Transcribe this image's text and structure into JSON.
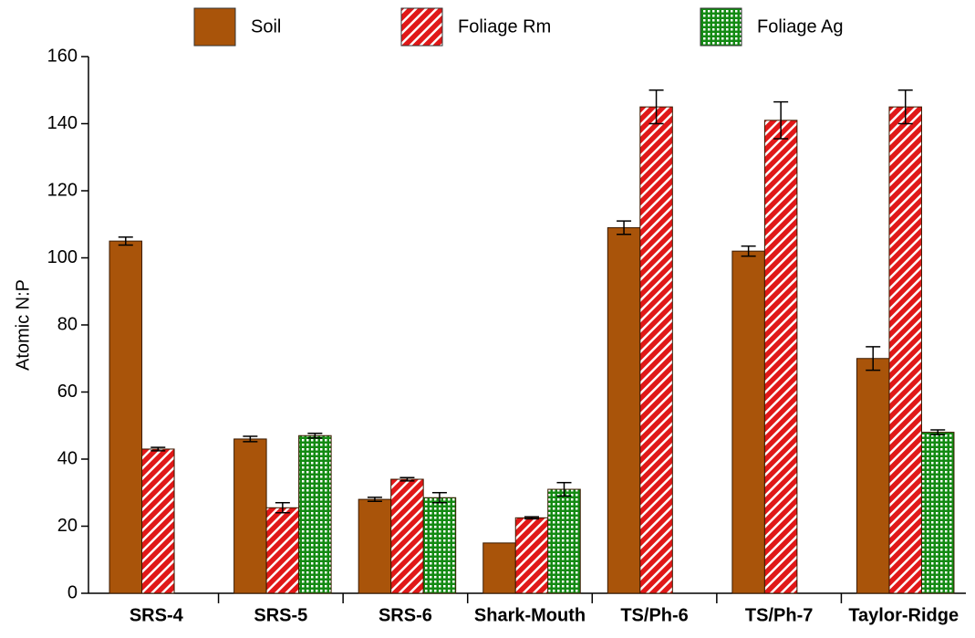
{
  "chart_data": {
    "type": "bar",
    "y_label": "Atomic N:P",
    "categories": [
      "SRS-4",
      "SRS-5",
      "SRS-6",
      "Shark-Mouth",
      "TS/Ph-6",
      "TS/Ph-7",
      "Taylor-Ridge"
    ],
    "series": [
      {
        "name": "Soil",
        "color": "#a9540a",
        "pattern": "solid",
        "values": [
          105,
          46,
          28,
          15,
          109,
          102,
          70
        ],
        "errors": [
          1.2,
          0.8,
          0.6,
          null,
          2,
          1.5,
          3.5
        ]
      },
      {
        "name": "Foliage Rm",
        "color": "#e01818",
        "pattern": "stripes",
        "values": [
          43,
          25.5,
          34,
          22.5,
          145,
          141,
          145
        ],
        "errors": [
          0.5,
          1.5,
          0.5,
          0.3,
          5,
          5.5,
          5
        ]
      },
      {
        "name": "Foliage Ag",
        "color": "#138a13",
        "pattern": "dots",
        "values": [
          null,
          47,
          28.5,
          31,
          null,
          null,
          48
        ],
        "errors": [
          null,
          0.7,
          1.5,
          2,
          null,
          null,
          0.7
        ]
      }
    ],
    "ylim": [
      0,
      160
    ],
    "yticks": [
      0,
      20,
      40,
      60,
      80,
      100,
      120,
      140,
      160
    ],
    "legend": "top",
    "grid": false
  }
}
